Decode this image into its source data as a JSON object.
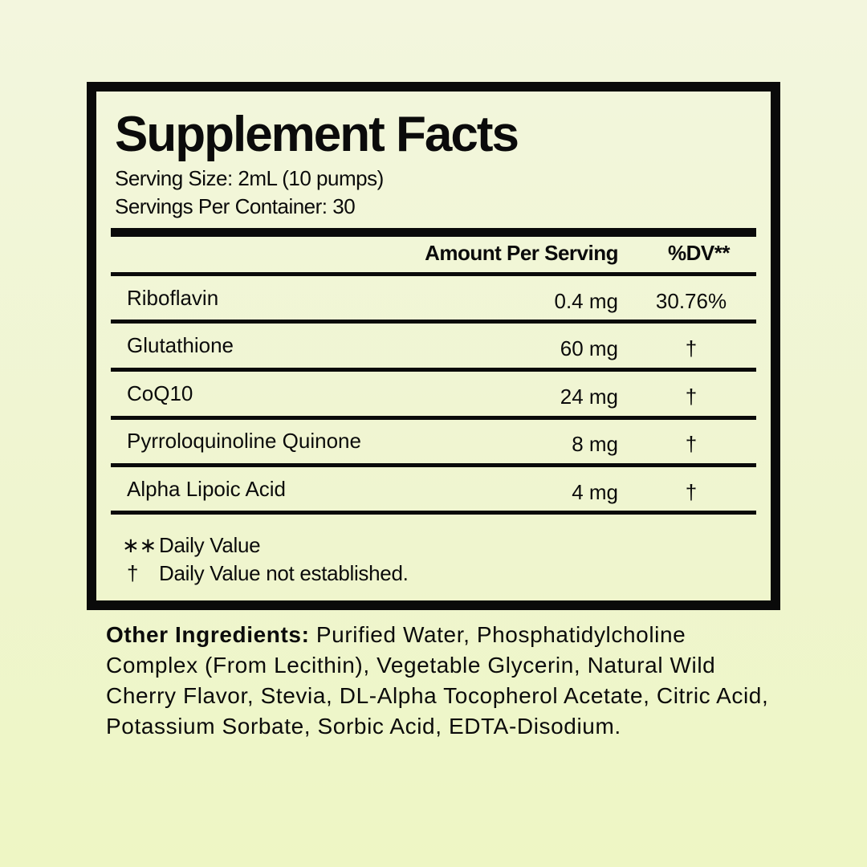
{
  "title": "Supplement Facts",
  "serving_size": "Serving Size: 2mL (10 pumps)",
  "servings_per_container": "Servings Per Container: 30",
  "header": {
    "amount": "Amount Per Serving",
    "dv": "%DV**"
  },
  "rows": [
    {
      "name": "Riboflavin",
      "amount": "0.4 mg",
      "dv": "30.76%"
    },
    {
      "name": "Glutathione",
      "amount": "60 mg",
      "dv": "†"
    },
    {
      "name": "CoQ10",
      "amount": "24 mg",
      "dv": "†"
    },
    {
      "name": "Pyrroloquinoline Quinone",
      "amount": "8 mg",
      "dv": "†"
    },
    {
      "name": "Alpha Lipoic Acid",
      "amount": "4 mg",
      "dv": "†"
    }
  ],
  "footnotes": [
    {
      "symbol": "∗∗",
      "text": "Daily Value"
    },
    {
      "symbol": "†",
      "text": "Daily Value not established."
    }
  ],
  "other_ingredients": {
    "label": "Other Ingredients:",
    "text": " Purified Water, Phosphatidylcholine Complex (From Lecithin), Vegetable Glycerin, Natural Wild Cherry Flavor, Stevia, DL-Alpha Tocopherol Acetate, Citric Acid, Potassium Sorbate, Sorbic Acid, EDTA-Disodium."
  }
}
